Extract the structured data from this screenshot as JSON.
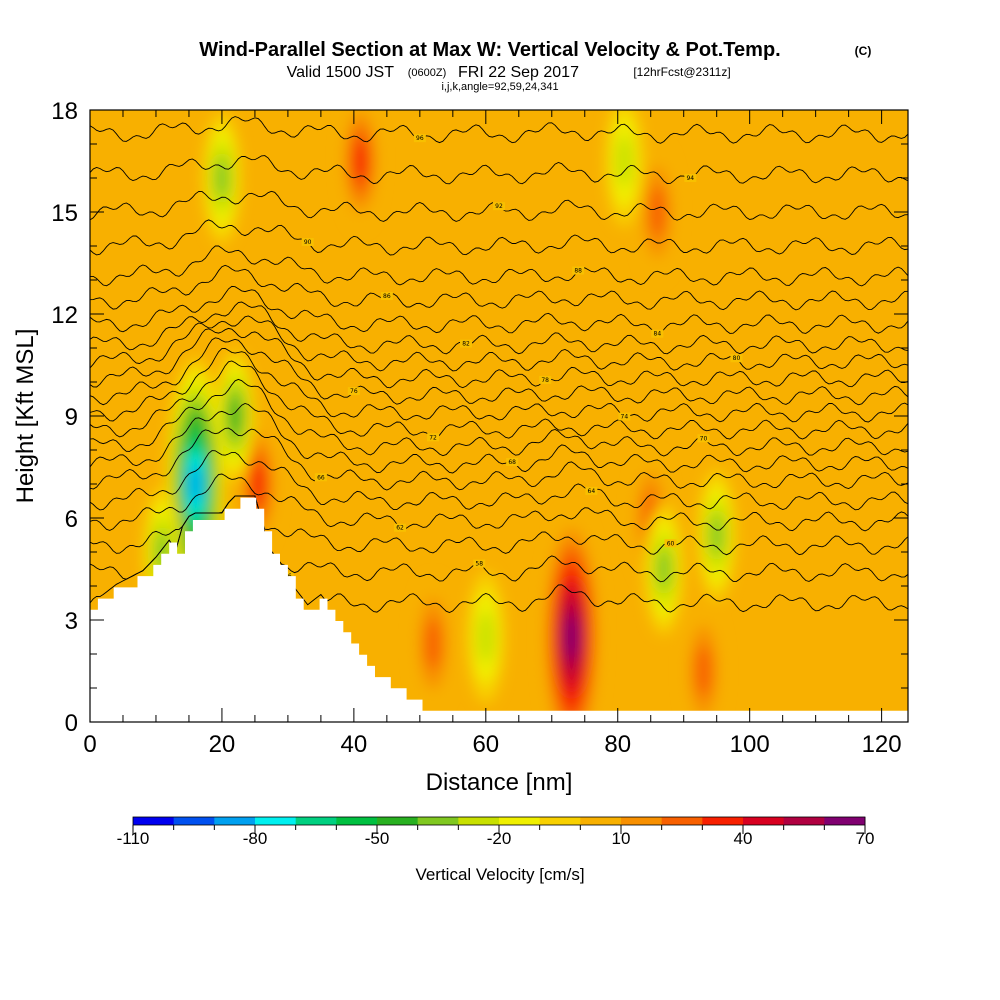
{
  "header": {
    "title": "Wind-Parallel Section at Max W: Vertical Velocity & Pot.Temp.",
    "copyright": "(C)",
    "valid_prefix": "Valid 1500 JST",
    "valid_utc": "(0600Z)",
    "valid_date": "FRI 22 Sep 2017",
    "forecast_info": "[12hrFcst@2311z]",
    "grid_info": "i,j,k,angle=92,59,24,341"
  },
  "chart_data": {
    "type": "heatmap",
    "title": "Wind-Parallel Section at Max W: Vertical Velocity & Pot.Temp.",
    "xlabel": "Distance [nm]",
    "ylabel": "Height [Kft MSL]",
    "xlim": [
      0,
      124
    ],
    "ylim": [
      0,
      18
    ],
    "x_ticks": [
      0,
      20,
      40,
      60,
      80,
      100,
      120
    ],
    "y_ticks": [
      0,
      3,
      6,
      9,
      12,
      15,
      18
    ],
    "colorbar": {
      "label": "Vertical Velocity [cm/s]",
      "min": -110,
      "max": 70,
      "step": 10,
      "tick_values": [
        -110,
        -80,
        -50,
        -20,
        10,
        40,
        70
      ],
      "tick_labels": [
        "-110",
        "-80",
        "-50",
        "-20",
        "10",
        "40",
        "70"
      ],
      "colors": [
        "#0000f0",
        "#0050f0",
        "#00a0f0",
        "#00f0f0",
        "#00d080",
        "#00c040",
        "#28b020",
        "#80c820",
        "#c8e000",
        "#f0f000",
        "#f8d000",
        "#f8b000",
        "#f89000",
        "#f86000",
        "#f82000",
        "#d80020",
        "#b00040",
        "#800070"
      ]
    },
    "vertical_velocity_features": [
      {
        "x": 73,
        "z": 2.5,
        "peak": 70,
        "note": "strong updraft core"
      },
      {
        "x": 41,
        "z": 16.5,
        "peak": 40
      },
      {
        "x": 25.5,
        "z": 7.0,
        "peak": 40
      },
      {
        "x": 52,
        "z": 2.3,
        "peak": 30
      },
      {
        "x": 86,
        "z": 15.0,
        "peak": 30
      },
      {
        "x": 85,
        "z": 6.0,
        "peak": 30
      },
      {
        "x": 93,
        "z": 1.5,
        "peak": 30
      },
      {
        "x": 16,
        "z": 7.0,
        "peak": -90,
        "note": "downdraft"
      },
      {
        "x": 22,
        "z": 9.0,
        "peak": -50
      },
      {
        "x": 20,
        "z": 16.0,
        "peak": -40
      },
      {
        "x": 11,
        "z": 5.0,
        "peak": -40
      },
      {
        "x": 81,
        "z": 16.5,
        "peak": -30
      },
      {
        "x": 87,
        "z": 4.5,
        "peak": -40
      },
      {
        "x": 95,
        "z": 5.5,
        "peak": -40
      },
      {
        "x": 60,
        "z": 2.5,
        "peak": -30
      }
    ],
    "terrain": [
      [
        0,
        3.3
      ],
      [
        2,
        3.6
      ],
      [
        4,
        3.9
      ],
      [
        8,
        4.3
      ],
      [
        10,
        4.7
      ],
      [
        12,
        5.2
      ],
      [
        13,
        4.9
      ],
      [
        14,
        5.6
      ],
      [
        15,
        5.9
      ],
      [
        16,
        6.0
      ],
      [
        20,
        6.0
      ],
      [
        21,
        6.3
      ],
      [
        22,
        6.5
      ],
      [
        25,
        6.5
      ],
      [
        26,
        5.8
      ],
      [
        27,
        5.0
      ],
      [
        29,
        4.5
      ],
      [
        31,
        3.8
      ],
      [
        33,
        3.3
      ],
      [
        35,
        3.6
      ],
      [
        37,
        3.1
      ],
      [
        39,
        2.5
      ],
      [
        41,
        1.9
      ],
      [
        43,
        1.5
      ],
      [
        45,
        1.1
      ],
      [
        47,
        0.8
      ],
      [
        49,
        0.6
      ],
      [
        51,
        0.4
      ],
      [
        52,
        0.3
      ],
      [
        124,
        0.3
      ]
    ],
    "potential_temperature_isentropes": [
      {
        "label": "56",
        "base": 3.5,
        "ridge": 0.2
      },
      {
        "label": "58",
        "base": 4.4,
        "ridge": 0.6
      },
      {
        "label": "60",
        "base": 5.2,
        "ridge": 0.9
      },
      {
        "label": "62",
        "base": 5.9,
        "ridge": 1.2
      },
      {
        "label": "64",
        "base": 6.5,
        "ridge": 1.4
      },
      {
        "label": "66",
        "base": 7.1,
        "ridge": 1.6
      },
      {
        "label": "68",
        "base": 7.6,
        "ridge": 1.7
      },
      {
        "label": "70",
        "base": 8.1,
        "ridge": 1.8
      },
      {
        "label": "72",
        "base": 8.6,
        "ridge": 1.8
      },
      {
        "label": "74",
        "base": 9.1,
        "ridge": 1.7
      },
      {
        "label": "76",
        "base": 9.6,
        "ridge": 1.6
      },
      {
        "label": "78",
        "base": 10.1,
        "ridge": 1.5
      },
      {
        "label": "80",
        "base": 10.6,
        "ridge": 1.3
      },
      {
        "label": "82",
        "base": 11.1,
        "ridge": 1.1
      },
      {
        "label": "84",
        "base": 11.7,
        "ridge": 0.9
      },
      {
        "label": "86",
        "base": 12.4,
        "ridge": 0.8
      },
      {
        "label": "88",
        "base": 13.1,
        "ridge": 0.7
      },
      {
        "label": "90",
        "base": 14.0,
        "ridge": 0.6
      },
      {
        "label": "92",
        "base": 15.0,
        "ridge": 0.5
      },
      {
        "label": "94",
        "base": 16.1,
        "ridge": 0.4
      },
      {
        "label": "96",
        "base": 17.3,
        "ridge": 0.3
      }
    ]
  }
}
